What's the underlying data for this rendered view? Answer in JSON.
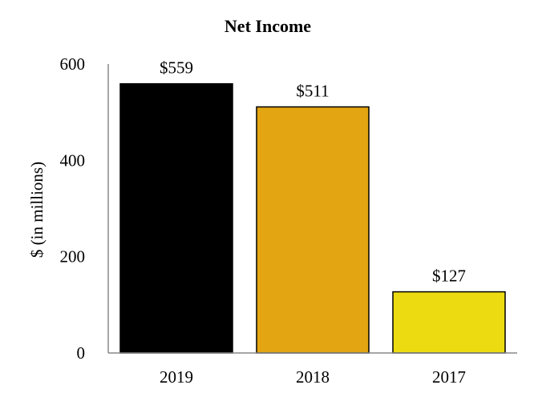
{
  "chart_data": {
    "type": "bar",
    "title": "Net Income",
    "xlabel": "",
    "ylabel": "$ (in millions)",
    "categories": [
      "2019",
      "2018",
      "2017"
    ],
    "values": [
      559,
      511,
      127
    ],
    "data_labels": [
      "$559",
      "$511",
      "$127"
    ],
    "colors": [
      "#000000",
      "#E3A512",
      "#EDDB12"
    ],
    "ylim": [
      0,
      600
    ],
    "yticks": [
      0,
      200,
      400,
      600
    ],
    "ytick_labels": [
      "0",
      "200",
      "400",
      "600"
    ],
    "grid": false,
    "legend": "none"
  }
}
